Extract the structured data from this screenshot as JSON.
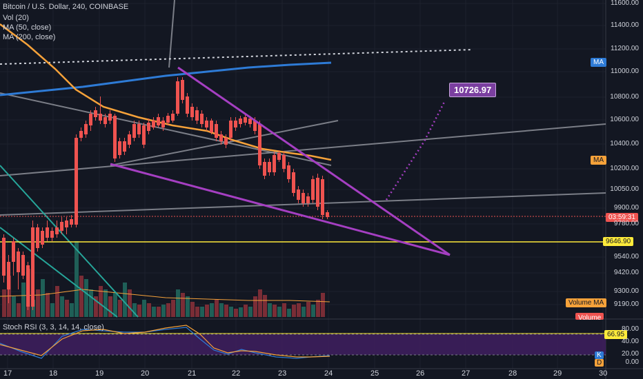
{
  "header": {
    "symbol_title": "Bitcoin / U.S. Dollar, 240, COINBASE",
    "indicators": [
      "Vol (20)",
      "MA (50, close)",
      "MA (200, close)"
    ]
  },
  "stoch": {
    "title": "Stoch RSI (3, 3, 14, 14, close)",
    "k_badge": "K",
    "d_badge": "D"
  },
  "price_axis": {
    "ticks": [
      "11600.00",
      "11400.00",
      "11200.00",
      "11000.00",
      "10800.00",
      "10600.00",
      "10400.00",
      "10200.00",
      "10050.00",
      "9900.00",
      "9780.00",
      "9540.00",
      "9420.00",
      "9300.00",
      "9190.00"
    ]
  },
  "stoch_axis": {
    "ticks": [
      "80.00",
      "40.00",
      "20.00",
      "0.00"
    ]
  },
  "time_axis": {
    "ticks": [
      "17",
      "18",
      "19",
      "20",
      "21",
      "22",
      "23",
      "24",
      "25",
      "26",
      "27",
      "28",
      "29",
      "30"
    ]
  },
  "tags": {
    "ma_upper": "MA",
    "ma_lower": "MA",
    "countdown": "03:59:31",
    "support_price": "9646.90",
    "volume_ma": "Volume MA",
    "volume": "Volume",
    "stoch_value": "66.95",
    "target_price": "10726.97"
  },
  "colors": {
    "background": "#131722",
    "up": "#26a69a",
    "down": "#ef5350",
    "ma50": "#f6a23a",
    "ma200": "#2e7bd6",
    "wedge": "#a53fc2",
    "support": "#ffeb3b",
    "stoch_band": "#3d1e5c"
  }
}
